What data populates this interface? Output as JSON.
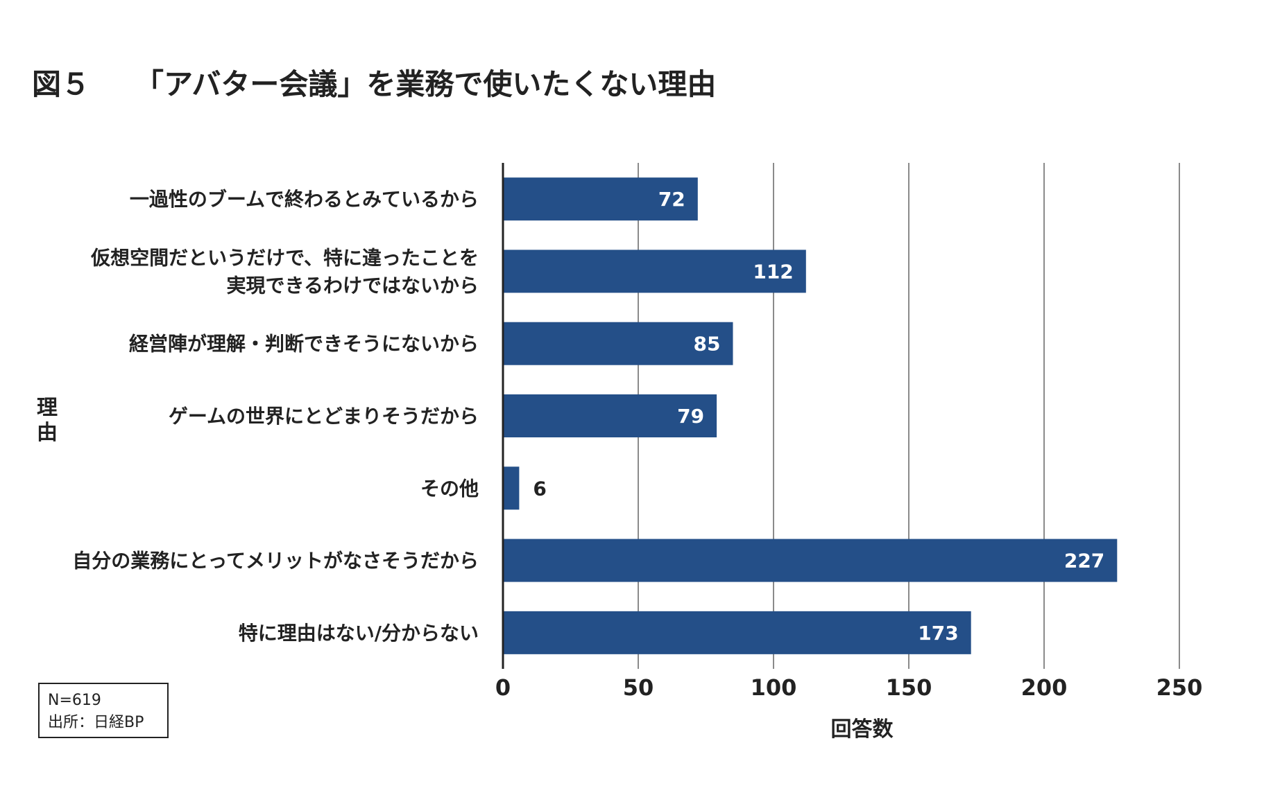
{
  "figure": {
    "number": "図５",
    "title": "「アバター会議」を業務で使いたくない理由"
  },
  "note": {
    "n": "N=619",
    "source": "出所：日経BP"
  },
  "colors": {
    "bar": "#244f88",
    "grid": "#8a8a8a",
    "axis": "#222222"
  },
  "chart_data": {
    "type": "bar",
    "orientation": "horizontal",
    "categories": [
      [
        "一過性のブームで終わるとみているから"
      ],
      [
        "仮想空間だというだけで、特に違ったことを",
        "実現できるわけではないから"
      ],
      [
        "経営陣が理解・判断できそうにないから"
      ],
      [
        "ゲームの世界にとどまりそうだから"
      ],
      [
        "その他"
      ],
      [
        "自分の業務にとってメリットがなさそうだから"
      ],
      [
        "特に理由はない/分からない"
      ]
    ],
    "values": [
      72,
      112,
      85,
      79,
      6,
      227,
      173
    ],
    "xlabel": "回答数",
    "ylabel": "理由",
    "xlim": [
      0,
      250
    ],
    "xticks": [
      0,
      50,
      100,
      150,
      200,
      250
    ],
    "grid": true
  }
}
